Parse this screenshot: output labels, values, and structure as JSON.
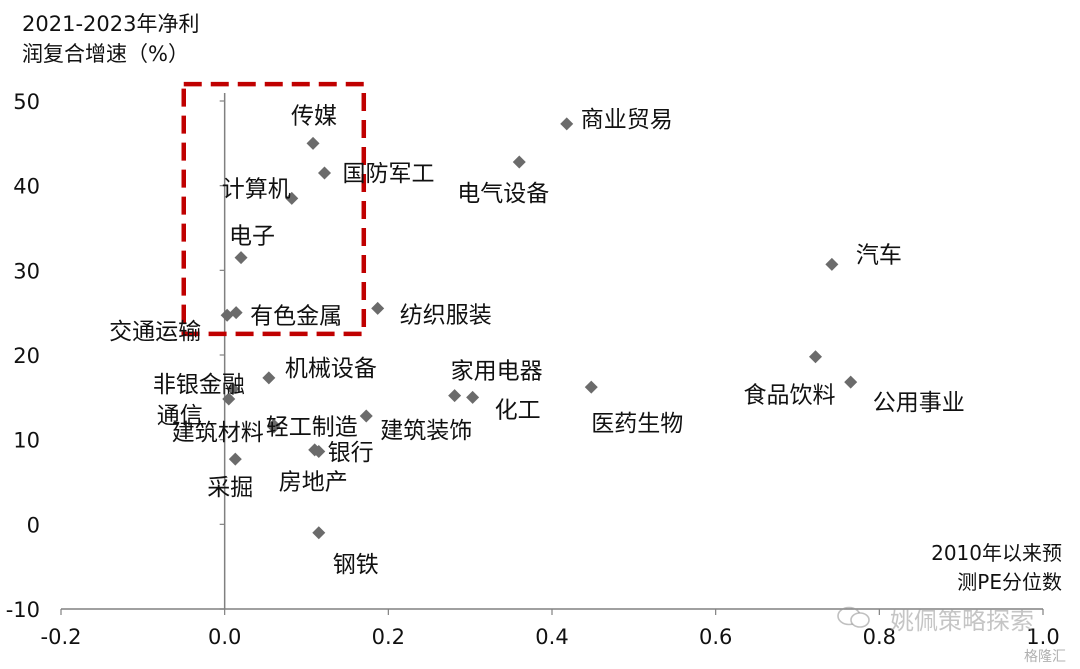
{
  "chart_data": {
    "type": "scatter",
    "ylabel_lines": [
      "2021-2023年净利",
      "润复合增速（%）"
    ],
    "xlabel_lines": [
      "2010年以来预",
      "测PE分位数"
    ],
    "xlim": [
      -0.2,
      1.0
    ],
    "ylim": [
      -10,
      50
    ],
    "xticks": [
      "-0.2",
      "0.0",
      "0.2",
      "0.4",
      "0.6",
      "0.8",
      "1.0"
    ],
    "yticks": [
      "50",
      "40",
      "30",
      "20",
      "10",
      "0",
      "-10"
    ],
    "marker_color": "#6b6b6b",
    "highlight_box": {
      "color": "#c00000",
      "style": "dashed",
      "x_range": [
        -0.05,
        0.17
      ],
      "y_range": [
        22.5,
        52
      ]
    },
    "points": [
      {
        "label": "传媒",
        "x": 0.108,
        "y": 45.0
      },
      {
        "label": "国防军工",
        "x": 0.122,
        "y": 41.5
      },
      {
        "label": "计算机",
        "x": 0.082,
        "y": 38.5
      },
      {
        "label": "电子",
        "x": 0.02,
        "y": 31.5
      },
      {
        "label": "有色金属",
        "x": 0.014,
        "y": 25.0
      },
      {
        "label": "交通运输",
        "x": 0.003,
        "y": 24.7
      },
      {
        "label": "纺织服装",
        "x": 0.187,
        "y": 25.5
      },
      {
        "label": "商业贸易",
        "x": 0.418,
        "y": 47.3
      },
      {
        "label": "电气设备",
        "x": 0.36,
        "y": 42.8
      },
      {
        "label": "汽车",
        "x": 0.742,
        "y": 30.7
      },
      {
        "label": "食品饮料",
        "x": 0.722,
        "y": 19.8
      },
      {
        "label": "公用事业",
        "x": 0.765,
        "y": 16.8
      },
      {
        "label": "医药生物",
        "x": 0.448,
        "y": 16.2
      },
      {
        "label": "家用电器",
        "x": 0.281,
        "y": 15.2
      },
      {
        "label": "化工",
        "x": 0.303,
        "y": 15.0
      },
      {
        "label": "机械设备",
        "x": 0.054,
        "y": 17.3
      },
      {
        "label": "非银金融",
        "x": 0.01,
        "y": 16.0
      },
      {
        "label": "通信",
        "x": 0.005,
        "y": 14.8
      },
      {
        "label": "轻工制造",
        "x": 0.06,
        "y": 11.7
      },
      {
        "label": "建筑装饰",
        "x": 0.173,
        "y": 12.8
      },
      {
        "label": "建筑材料",
        "x": 0.06,
        "y": 11.5
      },
      {
        "label": "银行",
        "x": 0.11,
        "y": 8.8
      },
      {
        "label": "采掘",
        "x": 0.013,
        "y": 7.7
      },
      {
        "label": "房地产",
        "x": 0.115,
        "y": 8.6
      },
      {
        "label": "钢铁",
        "x": 0.115,
        "y": -1.0
      }
    ]
  },
  "watermark": {
    "text": "姚佩策略探索",
    "logo": "格隆汇",
    "icon": "wechat-icon"
  }
}
